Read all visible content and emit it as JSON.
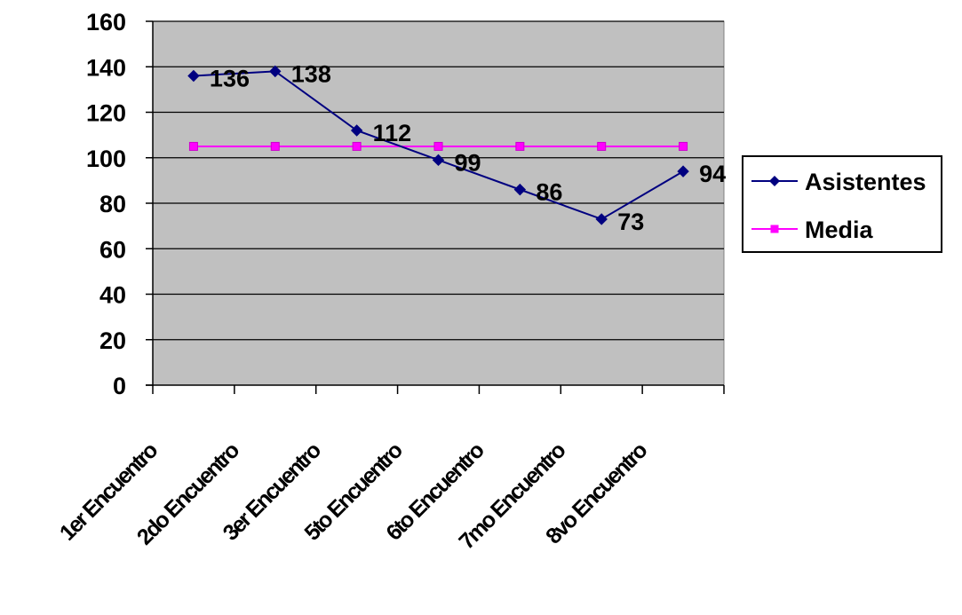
{
  "chart_data": {
    "type": "line",
    "categories": [
      "1er Encuentro",
      "2do Encuentro",
      "3er Encuentro",
      "5to Encuentro",
      "6to Encuentro",
      "7mo Encuentro",
      "8vo Encuentro"
    ],
    "series": [
      {
        "name": "Asistentes",
        "values": [
          136,
          138,
          112,
          99,
          86,
          73,
          94
        ],
        "color": "#000080",
        "marker": "diamond",
        "data_labels": [
          "136",
          "138",
          "112",
          "99",
          "86",
          "73",
          "94"
        ]
      },
      {
        "name": "Media",
        "values": [
          105,
          105,
          105,
          105,
          105,
          105,
          105
        ],
        "color": "#ff00ff",
        "marker": "square"
      }
    ],
    "ylim": [
      0,
      160
    ],
    "yticks": [
      0,
      20,
      40,
      60,
      80,
      100,
      120,
      140,
      160
    ],
    "ytick_labels": [
      "0",
      "20",
      "40",
      "60",
      "80",
      "100",
      "120",
      "140",
      "160"
    ],
    "grid": true,
    "plot_background": "#c0c0c0",
    "legend_position": "right",
    "title": "",
    "xlabel": "",
    "ylabel": ""
  }
}
